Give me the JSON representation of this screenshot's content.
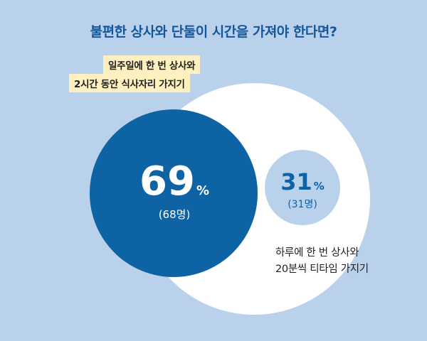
{
  "title": "불편한 상사와 단둘이 시간을 가져야 한다면?",
  "chart_data": {
    "type": "bubble",
    "title": "불편한 상사와 단둘이 시간을 가져야 한다면?",
    "series": [
      {
        "label_lines": [
          "일주일에 한 번 상사와",
          "2시간 동안 식사자리 가지기"
        ],
        "percent": 69,
        "percent_text": "69",
        "count_text": "(68명)",
        "color": "#0d63a4"
      },
      {
        "label_lines": [
          "하루에 한 번 상사와",
          "20분씩 티타임 가지기"
        ],
        "percent": 31,
        "percent_text": "31",
        "count_text": "(31명)",
        "color": "#bad1ec"
      }
    ],
    "percent_unit": "%",
    "colors": {
      "background": "#bad1ec",
      "outer_circle": "#ffffff",
      "title": "#15569a",
      "highlight": "#fff1bf"
    }
  }
}
